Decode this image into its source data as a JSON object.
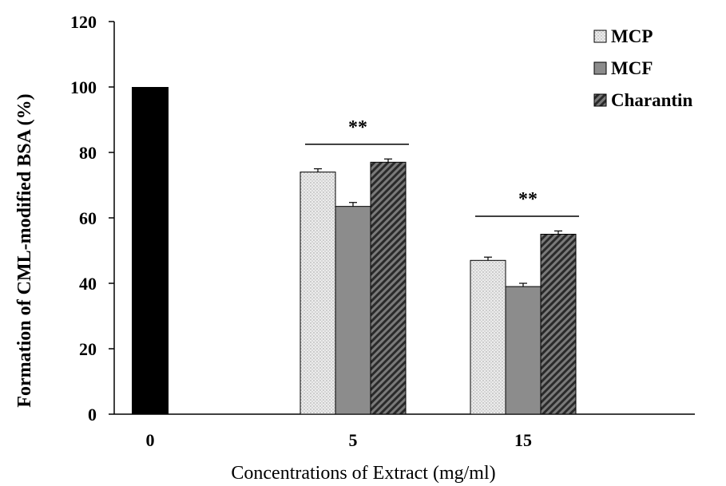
{
  "chart_data": {
    "type": "bar",
    "title": "",
    "xlabel": "Concentrations of Extract (mg/ml)",
    "ylabel": "Formation of CML-modified BSA (%)",
    "ylim": [
      0,
      120
    ],
    "yticks": [
      0,
      20,
      40,
      60,
      80,
      100,
      120
    ],
    "categories": [
      "0",
      "5",
      "15"
    ],
    "control": {
      "category": "0",
      "value": 100,
      "color": "#000000"
    },
    "series": [
      {
        "name": "MCP",
        "values": [
          null,
          74,
          47
        ],
        "errors": [
          null,
          1,
          1
        ],
        "color": "#e6e6e6",
        "pattern": "dots"
      },
      {
        "name": "MCF",
        "values": [
          null,
          63.5,
          39
        ],
        "errors": [
          null,
          1.2,
          1
        ],
        "color": "#8c8c8c",
        "pattern": "solid"
      },
      {
        "name": "Charantin",
        "values": [
          null,
          77,
          55
        ],
        "errors": [
          null,
          1,
          1
        ],
        "color": "#555555",
        "pattern": "hatch"
      }
    ],
    "annotations": [
      {
        "text": "**",
        "category": "5",
        "y": 82.5
      },
      {
        "text": "**",
        "category": "15",
        "y": 60.5
      }
    ],
    "legend_position": "top-right",
    "grid": false
  }
}
